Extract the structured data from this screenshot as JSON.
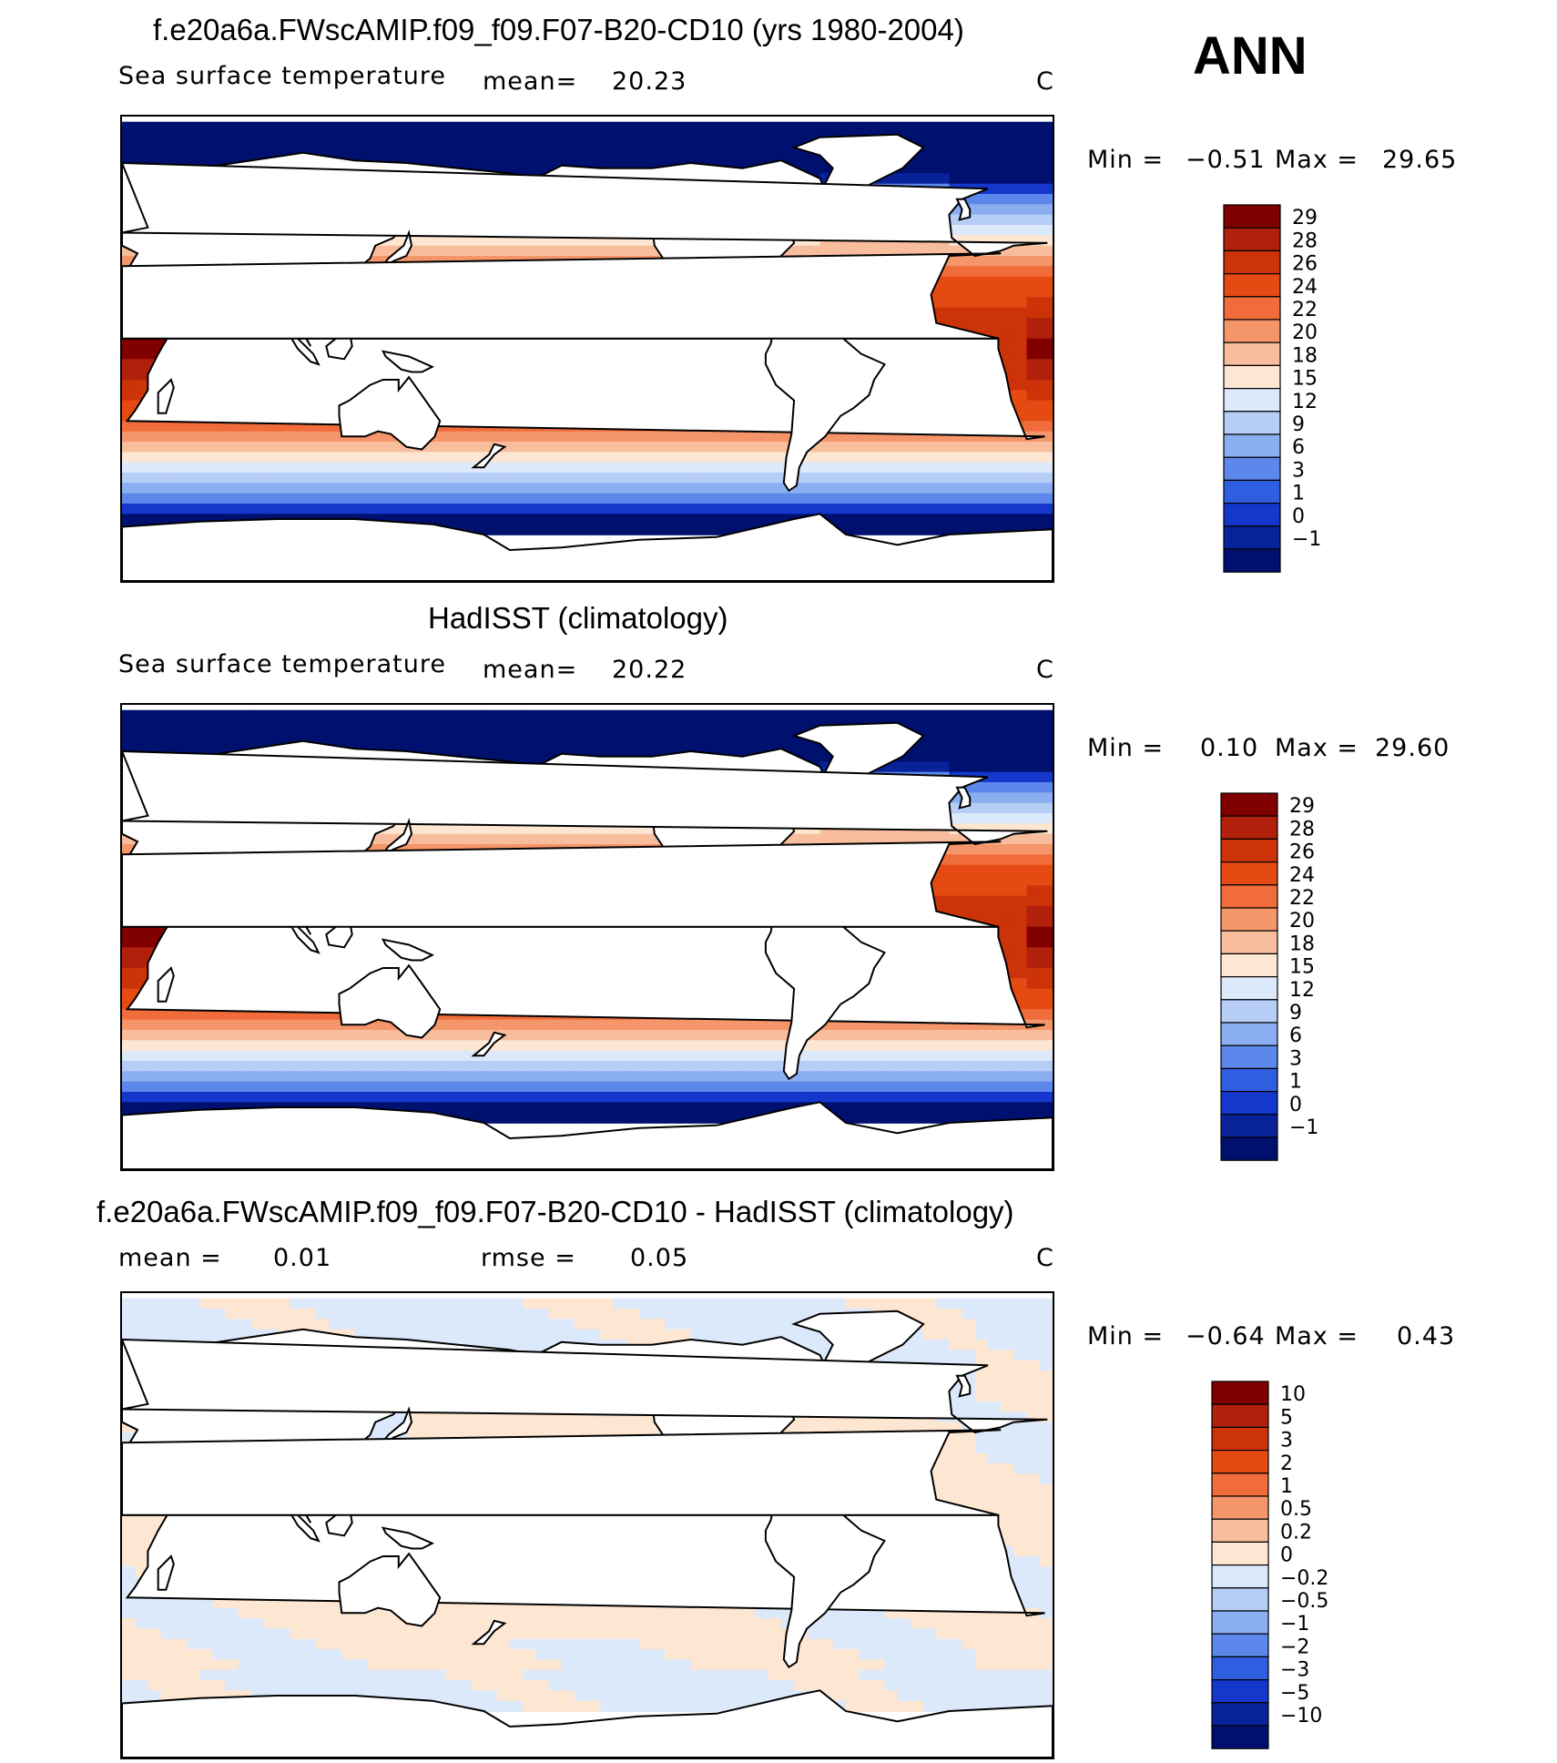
{
  "season": "ANN",
  "panels": [
    {
      "title": "f.e20a6a.FWscAMIP.f09_f09.F07-B20-CD10 (yrs 1980-2004)",
      "left_label": "Sea surface temperature",
      "mean_label": "mean=",
      "mean_value": "20.23",
      "units": "C",
      "min_label": "Min =",
      "min_value": "−0.51",
      "max_label": "Max =",
      "max_value": "29.65",
      "colorbar": {
        "labels": [
          "29",
          "28",
          "26",
          "24",
          "22",
          "20",
          "18",
          "15",
          "12",
          "9",
          "6",
          "3",
          "1",
          "0",
          "−1"
        ],
        "colors": [
          "#800000",
          "#b0200a",
          "#cc3308",
          "#e54a12",
          "#f06c3a",
          "#f5956a",
          "#f8bd9c",
          "#fde6d2",
          "#dce9fb",
          "#b6cdf6",
          "#8aaef0",
          "#5b88ea",
          "#2f5ee0",
          "#1538cc",
          "#082399",
          "#00106e"
        ]
      },
      "map_type": "sst"
    },
    {
      "title": "HadISST (climatology)",
      "left_label": "Sea surface temperature",
      "mean_label": "mean=",
      "mean_value": "20.22",
      "units": "C",
      "min_label": "Min =",
      "min_value": "0.10",
      "max_label": "Max =",
      "max_value": "29.60",
      "colorbar": {
        "labels": [
          "29",
          "28",
          "26",
          "24",
          "22",
          "20",
          "18",
          "15",
          "12",
          "9",
          "6",
          "3",
          "1",
          "0",
          "−1"
        ],
        "colors": [
          "#800000",
          "#b0200a",
          "#cc3308",
          "#e54a12",
          "#f06c3a",
          "#f5956a",
          "#f8bd9c",
          "#fde6d2",
          "#dce9fb",
          "#b6cdf6",
          "#8aaef0",
          "#5b88ea",
          "#2f5ee0",
          "#1538cc",
          "#082399",
          "#00106e"
        ]
      },
      "map_type": "sst"
    },
    {
      "title": "f.e20a6a.FWscAMIP.f09_f09.F07-B20-CD10 - HadISST (climatology)",
      "left_label": "mean =",
      "mean_label": "",
      "mean_value": "0.01",
      "rmse_label": "rmse =",
      "rmse_value": "0.05",
      "units": "C",
      "min_label": "Min =",
      "min_value": "−0.64",
      "max_label": "Max =",
      "max_value": "0.43",
      "colorbar": {
        "labels": [
          "10",
          "5",
          "3",
          "2",
          "1",
          "0.5",
          "0.2",
          "0",
          "−0.2",
          "−0.5",
          "−1",
          "−2",
          "−3",
          "−5",
          "−10"
        ],
        "colors": [
          "#800000",
          "#b0200a",
          "#cc3308",
          "#e54a12",
          "#f06c3a",
          "#f5956a",
          "#f8bd9c",
          "#fde6d2",
          "#dce9fb",
          "#b6cdf6",
          "#8aaef0",
          "#5b88ea",
          "#2f5ee0",
          "#1538cc",
          "#082399",
          "#00106e"
        ]
      },
      "map_type": "diff"
    }
  ]
}
